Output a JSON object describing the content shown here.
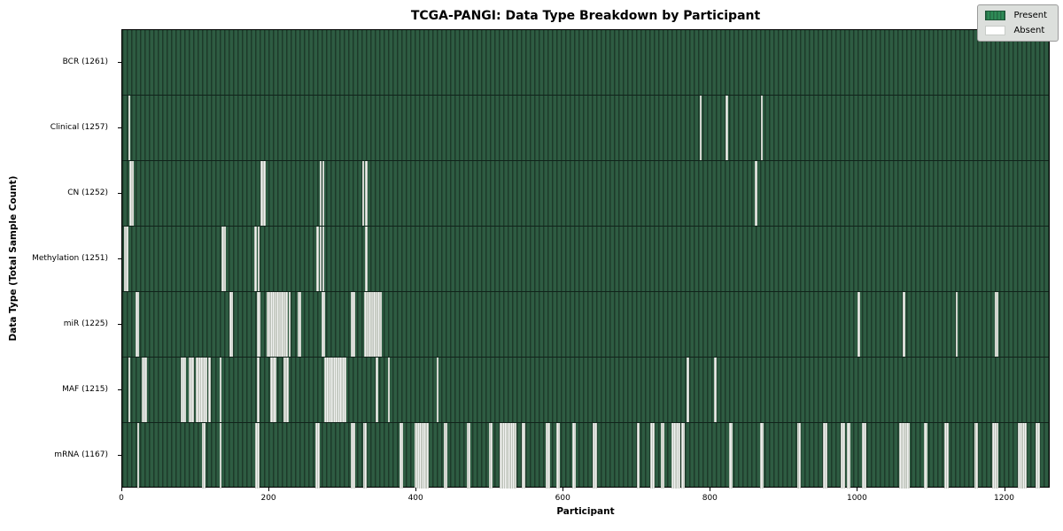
{
  "title": "TCGA-PANGI: Data Type Breakdown by Participant",
  "chart_data": {
    "type": "heatmap",
    "title": "TCGA-PANGI: Data Type Breakdown by Participant",
    "xlabel": "Participant",
    "ylabel": "Data Type (Total Sample Count)",
    "x_ticks": [
      0,
      200,
      400,
      600,
      800,
      1000,
      1200
    ],
    "x_max": 1262,
    "total_participants": 1261,
    "grid": false,
    "legend_position": "upper right",
    "legend": {
      "present_label": "Present",
      "absent_label": "Absent"
    },
    "colors": {
      "present": "#2E8B57",
      "present_body": "#2e5c42",
      "present_edge": "#1d3a2a",
      "absent": "#ffffff",
      "legend_bg": "#dcdfdc"
    },
    "rows": [
      {
        "name": "BCR",
        "count": 1261,
        "label": "BCR (1261)",
        "absent_count": 0,
        "absent_at": []
      },
      {
        "name": "Clinical",
        "count": 1257,
        "label": "Clinical (1257)",
        "absent_count": 4,
        "absent_at": [
          8,
          785,
          820,
          868
        ]
      },
      {
        "name": "CN",
        "count": 1252,
        "label": "CN (1252)",
        "absent_count": 9,
        "absent_at": [
          10,
          13,
          188,
          192,
          268,
          272,
          326,
          330,
          860
        ]
      },
      {
        "name": "Methylation",
        "count": 1251,
        "label": "Methylation (1251)",
        "absent_count": 10,
        "absent_at": [
          2,
          5,
          135,
          138,
          180,
          184,
          264,
          268,
          272,
          330
        ]
      },
      {
        "name": "miR",
        "count": 1225,
        "label": "miR (1225)",
        "absent_count": 36,
        "absent_at": [
          18,
          20,
          146,
          148,
          183,
          185,
          196,
          198,
          201,
          204,
          207,
          210,
          213,
          216,
          219,
          222,
          226,
          238,
          240,
          271,
          273,
          311,
          313,
          329,
          332,
          335,
          338,
          341,
          344,
          347,
          350,
          1000,
          1061,
          1133,
          1186,
          1188
        ]
      },
      {
        "name": "MAF",
        "count": 1215,
        "label": "MAF (1215)",
        "absent_count": 46,
        "absent_at": [
          8,
          26,
          28,
          30,
          80,
          82,
          84,
          90,
          92,
          94,
          100,
          102,
          104,
          106,
          108,
          110,
          112,
          117,
          132,
          183,
          201,
          203,
          205,
          207,
          219,
          221,
          223,
          275,
          277,
          279,
          281,
          283,
          285,
          287,
          289,
          291,
          293,
          295,
          297,
          299,
          301,
          345,
          361,
          427,
          767,
          805
        ]
      },
      {
        "name": "mRNA",
        "count": 1167,
        "label": "mRNA (1167)",
        "absent_count": 94,
        "absent_at": [
          20,
          108,
          110,
          132,
          181,
          183,
          263,
          265,
          311,
          313,
          327,
          329,
          377,
          379,
          397,
          399,
          401,
          404,
          407,
          410,
          413,
          437,
          439,
          468,
          470,
          498,
          500,
          513,
          515,
          517,
          519,
          521,
          524,
          526,
          528,
          530,
          533,
          543,
          545,
          576,
          578,
          590,
          592,
          612,
          614,
          640,
          642,
          700,
          718,
          720,
          732,
          734,
          747,
          749,
          751,
          753,
          755,
          760,
          762,
          825,
          827,
          867,
          869,
          917,
          919,
          953,
          955,
          977,
          979,
          985,
          987,
          1006,
          1008,
          1056,
          1058,
          1060,
          1063,
          1066,
          1068,
          1090,
          1092,
          1118,
          1120,
          1158,
          1160,
          1183,
          1185,
          1188,
          1218,
          1220,
          1224,
          1226,
          1242,
          1244
        ]
      }
    ]
  }
}
